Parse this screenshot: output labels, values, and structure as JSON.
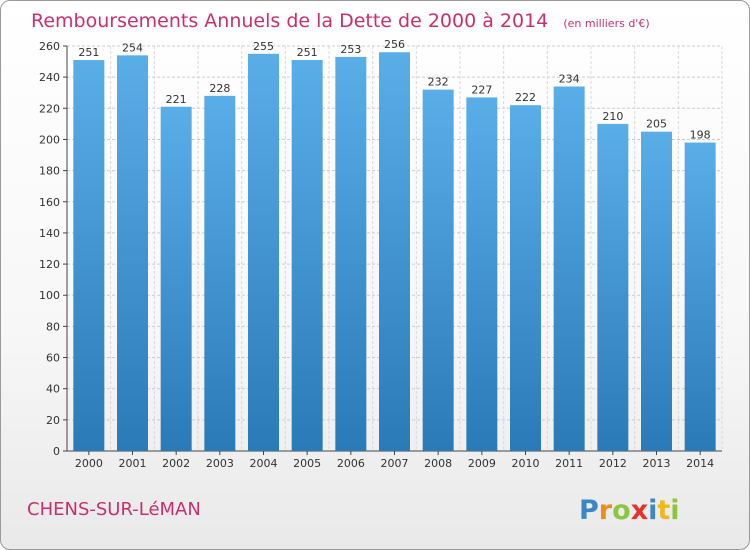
{
  "chart_data": {
    "type": "bar",
    "title": "Remboursements Annuels de la Dette de 2000 à 2014",
    "subtitle": "(en milliers d'€)",
    "categories": [
      "2000",
      "2001",
      "2002",
      "2003",
      "2004",
      "2005",
      "2006",
      "2007",
      "2008",
      "2009",
      "2010",
      "2011",
      "2012",
      "2013",
      "2014"
    ],
    "values": [
      251,
      254,
      221,
      228,
      255,
      251,
      253,
      256,
      232,
      227,
      222,
      234,
      210,
      205,
      198
    ],
    "ylim": [
      0,
      260
    ],
    "yticks": [
      0,
      20,
      40,
      60,
      80,
      100,
      120,
      140,
      160,
      180,
      200,
      220,
      240,
      260
    ],
    "grid": true,
    "bar_color_top": "#5aaee8",
    "bar_color_bottom": "#2a7ab8"
  },
  "footer": {
    "commune": "CHENS-SUR-LéMAN",
    "brand_letters": [
      "P",
      "r",
      "o",
      "x",
      "i",
      "t",
      "i"
    ],
    "brand_colors": [
      "#3a86c6",
      "#f08a1c",
      "#8cc63f",
      "#e2342c",
      "#3a86c6",
      "#f0b81c",
      "#8cc63f"
    ]
  }
}
